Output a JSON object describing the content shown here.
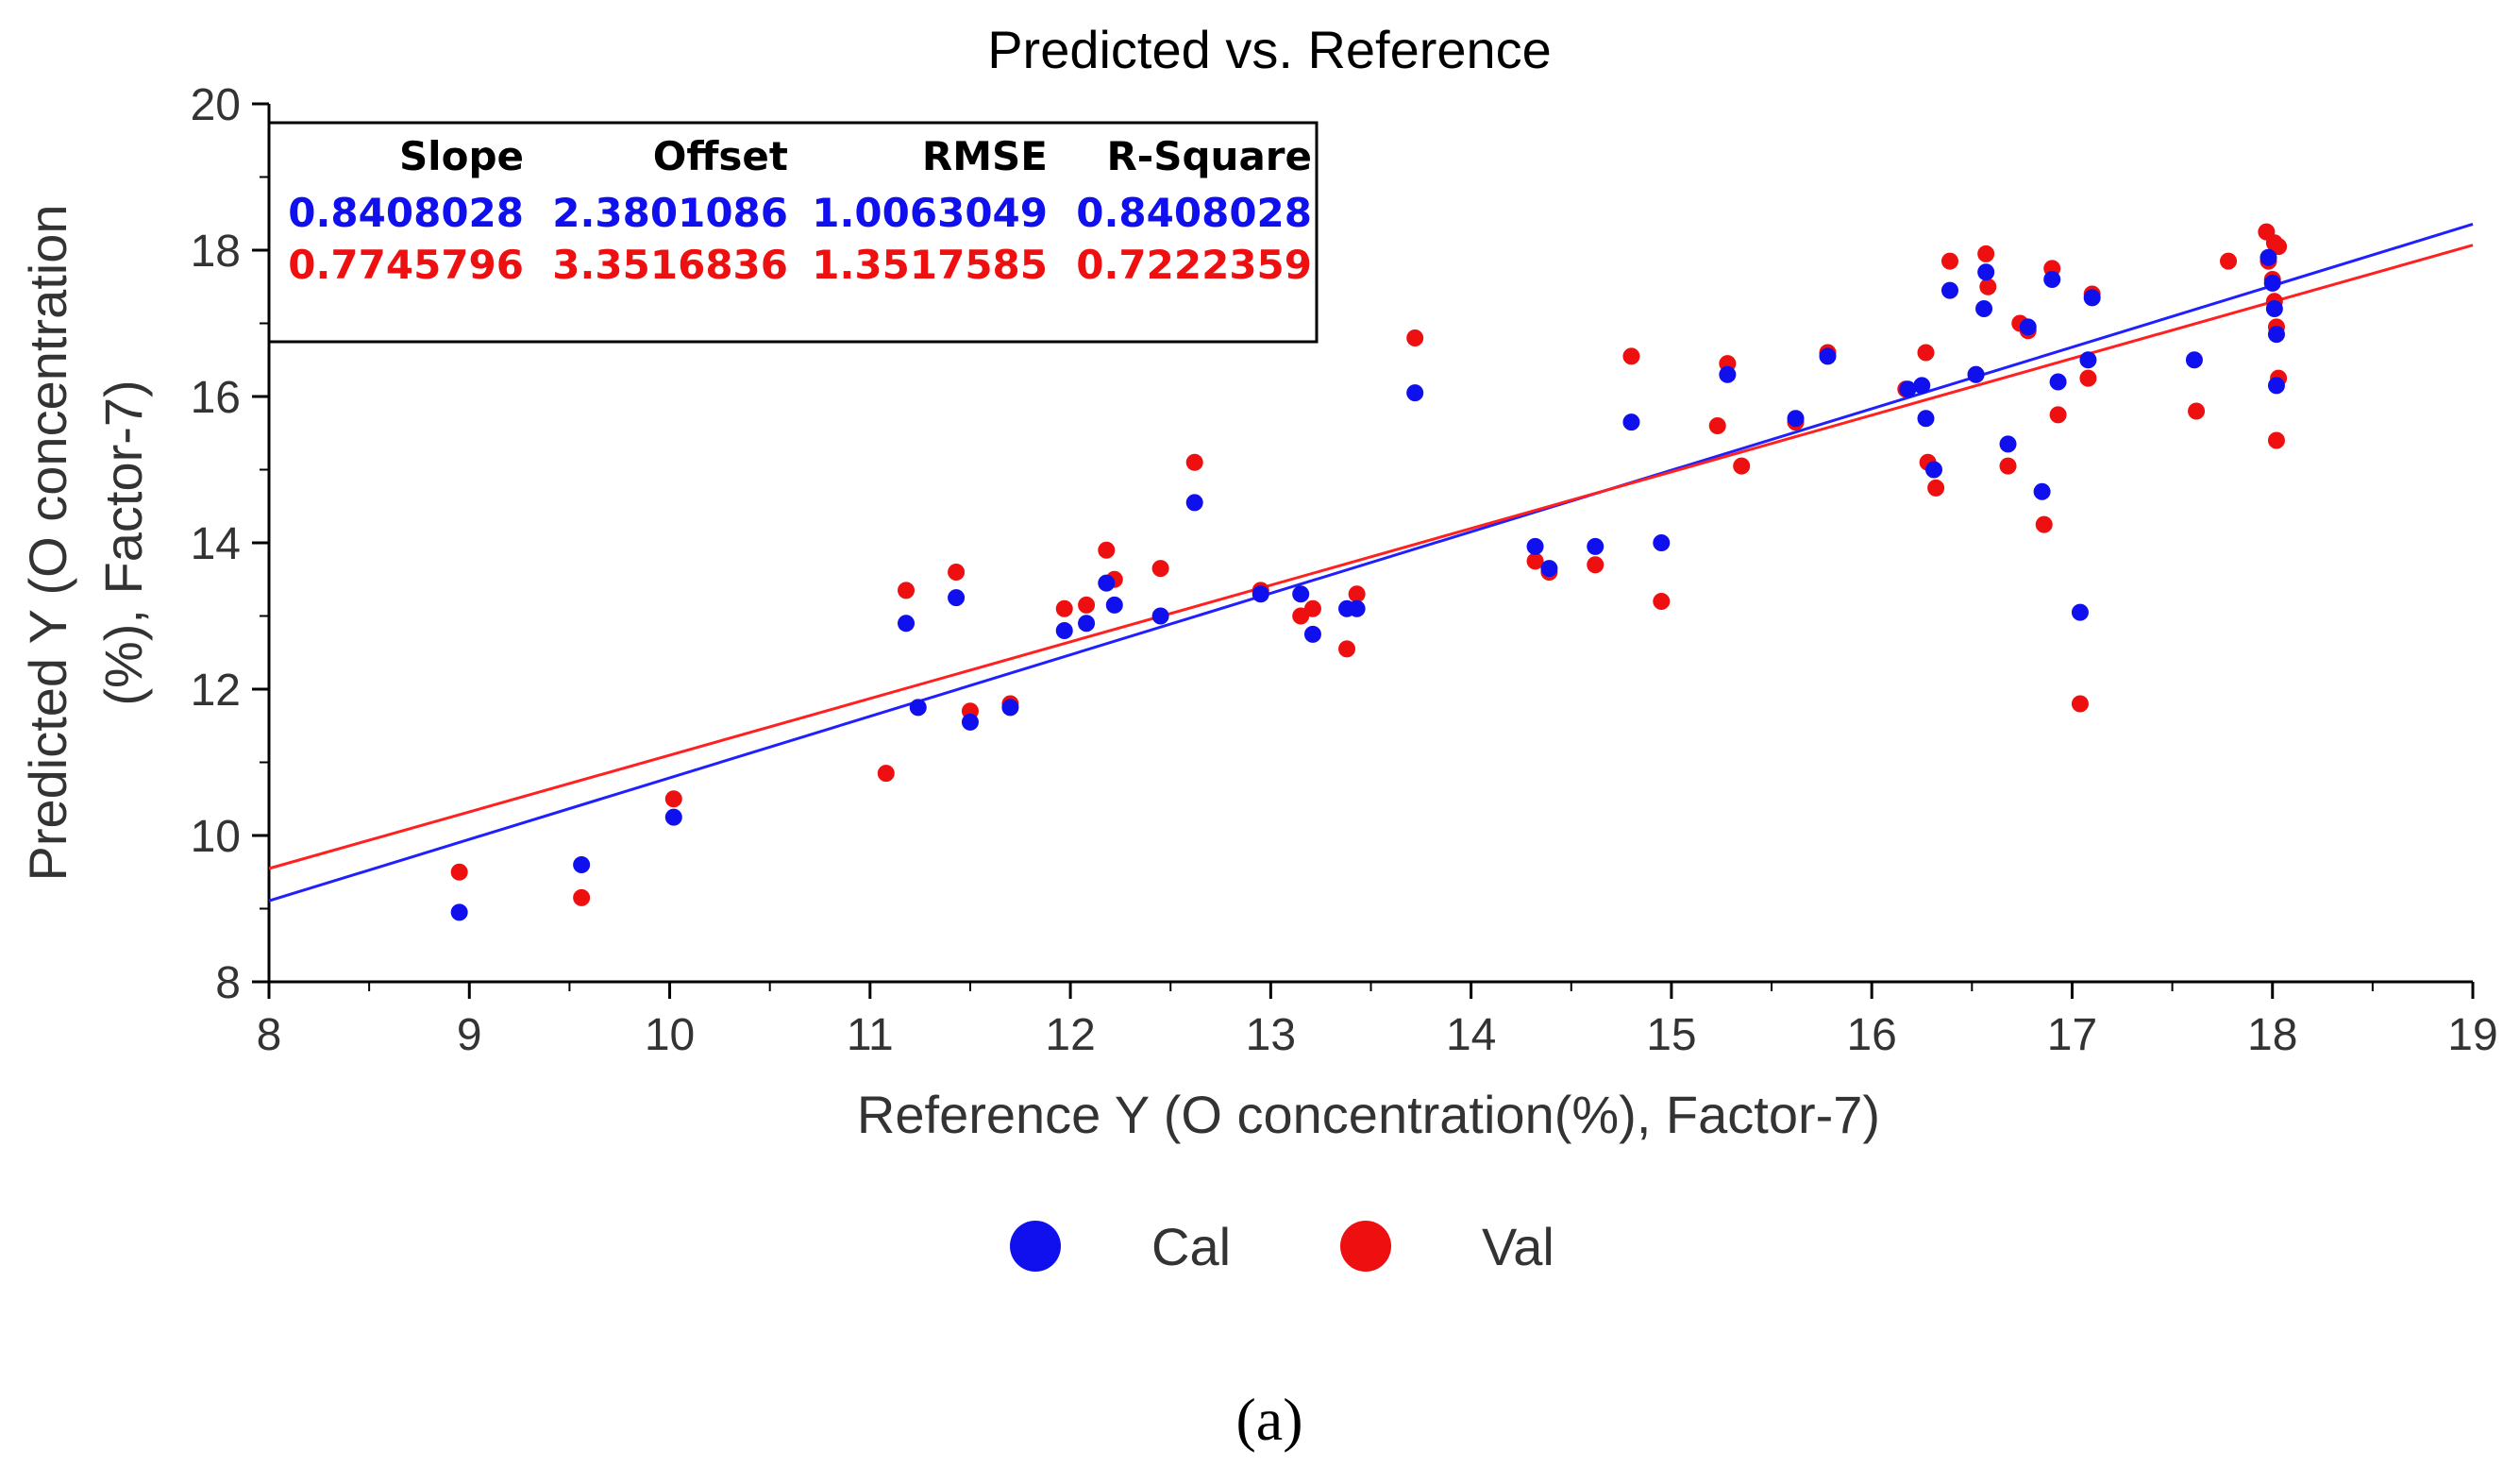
{
  "chart_data": {
    "type": "scatter",
    "title": "Predicted vs. Reference",
    "xlabel": "Reference Y (O concentration(%), Factor-7)",
    "ylabel_lines": [
      "Predicted Y (O concentration",
      "(%), Factor-7)"
    ],
    "xlim": [
      8,
      19
    ],
    "ylim": [
      8,
      20
    ],
    "xticks": [
      8,
      9,
      10,
      11,
      12,
      13,
      14,
      15,
      16,
      17,
      18,
      19
    ],
    "yticks": [
      8,
      10,
      12,
      14,
      16,
      18,
      20
    ],
    "grid": false,
    "legend_position": "bottom",
    "caption": "(a)",
    "stats_table": {
      "headers": [
        "Slope",
        "Offset",
        "RMSE",
        "R-Square"
      ],
      "rows": [
        {
          "series": "Cal",
          "values": [
            "0.8408028",
            "2.3801086",
            "1.0063049",
            "0.8408028"
          ]
        },
        {
          "series": "Val",
          "values": [
            "0.7745796",
            "3.3516836",
            "1.3517585",
            "0.7222359"
          ]
        }
      ]
    },
    "regression_lines": [
      {
        "series": "Cal",
        "slope": 0.8408028,
        "offset": 2.3801086,
        "color": "#2020ff"
      },
      {
        "series": "Val",
        "slope": 0.7745796,
        "offset": 3.3516836,
        "color": "#ff2020"
      }
    ],
    "series": [
      {
        "name": "Cal",
        "color": "#1010ee",
        "points": [
          [
            8.95,
            8.95
          ],
          [
            9.56,
            9.6
          ],
          [
            10.02,
            10.25
          ],
          [
            11.18,
            12.9
          ],
          [
            11.24,
            11.75
          ],
          [
            11.43,
            13.25
          ],
          [
            11.5,
            11.55
          ],
          [
            11.7,
            11.75
          ],
          [
            11.97,
            12.8
          ],
          [
            12.08,
            12.9
          ],
          [
            12.18,
            13.45
          ],
          [
            12.22,
            13.15
          ],
          [
            12.45,
            13.0
          ],
          [
            12.62,
            14.55
          ],
          [
            12.95,
            13.3
          ],
          [
            13.15,
            13.3
          ],
          [
            13.21,
            12.75
          ],
          [
            13.38,
            13.1
          ],
          [
            13.43,
            13.1
          ],
          [
            13.72,
            16.05
          ],
          [
            14.32,
            13.95
          ],
          [
            14.39,
            13.65
          ],
          [
            14.62,
            13.95
          ],
          [
            14.8,
            15.65
          ],
          [
            14.95,
            14.0
          ],
          [
            15.28,
            16.3
          ],
          [
            15.62,
            15.7
          ],
          [
            15.78,
            16.55
          ],
          [
            16.18,
            16.1
          ],
          [
            16.25,
            16.15
          ],
          [
            16.27,
            15.7
          ],
          [
            16.31,
            15.0
          ],
          [
            16.39,
            17.45
          ],
          [
            16.52,
            16.3
          ],
          [
            16.57,
            17.7
          ],
          [
            16.56,
            17.2
          ],
          [
            16.68,
            15.35
          ],
          [
            16.78,
            16.95
          ],
          [
            16.85,
            14.7
          ],
          [
            16.9,
            17.6
          ],
          [
            16.93,
            16.2
          ],
          [
            17.04,
            13.05
          ],
          [
            17.08,
            16.5
          ],
          [
            17.1,
            17.35
          ],
          [
            17.61,
            16.5
          ],
          [
            17.98,
            17.9
          ],
          [
            18.0,
            17.55
          ],
          [
            18.01,
            17.2
          ],
          [
            18.02,
            16.85
          ],
          [
            18.02,
            16.15
          ]
        ]
      },
      {
        "name": "Val",
        "color": "#ee1010",
        "points": [
          [
            8.95,
            9.5
          ],
          [
            9.56,
            9.15
          ],
          [
            10.02,
            10.5
          ],
          [
            11.08,
            10.85
          ],
          [
            11.18,
            13.35
          ],
          [
            11.43,
            13.6
          ],
          [
            11.5,
            11.7
          ],
          [
            11.7,
            11.8
          ],
          [
            11.97,
            13.1
          ],
          [
            12.08,
            13.15
          ],
          [
            12.18,
            13.9
          ],
          [
            12.22,
            13.5
          ],
          [
            12.45,
            13.65
          ],
          [
            12.62,
            15.1
          ],
          [
            12.95,
            13.35
          ],
          [
            13.15,
            13.0
          ],
          [
            13.21,
            13.1
          ],
          [
            13.38,
            12.55
          ],
          [
            13.43,
            13.3
          ],
          [
            13.72,
            16.8
          ],
          [
            14.32,
            13.75
          ],
          [
            14.39,
            13.6
          ],
          [
            14.62,
            13.7
          ],
          [
            14.8,
            16.55
          ],
          [
            14.95,
            13.2
          ],
          [
            15.23,
            15.6
          ],
          [
            15.28,
            16.45
          ],
          [
            15.35,
            15.05
          ],
          [
            15.62,
            15.65
          ],
          [
            15.78,
            16.6
          ],
          [
            16.17,
            16.1
          ],
          [
            16.27,
            16.6
          ],
          [
            16.28,
            15.1
          ],
          [
            16.32,
            14.75
          ],
          [
            16.39,
            17.85
          ],
          [
            16.52,
            16.3
          ],
          [
            16.57,
            17.95
          ],
          [
            16.58,
            17.5
          ],
          [
            16.68,
            15.05
          ],
          [
            16.74,
            17.0
          ],
          [
            16.78,
            16.9
          ],
          [
            16.86,
            14.25
          ],
          [
            16.9,
            17.75
          ],
          [
            16.93,
            15.75
          ],
          [
            17.04,
            11.8
          ],
          [
            17.08,
            16.25
          ],
          [
            17.1,
            17.4
          ],
          [
            17.62,
            15.8
          ],
          [
            17.78,
            17.85
          ],
          [
            17.97,
            18.25
          ],
          [
            17.98,
            17.85
          ],
          [
            18.0,
            17.6
          ],
          [
            18.01,
            17.3
          ],
          [
            18.02,
            16.95
          ],
          [
            18.03,
            16.25
          ],
          [
            18.02,
            15.4
          ],
          [
            18.03,
            18.05
          ],
          [
            18.01,
            18.1
          ]
        ]
      }
    ]
  }
}
